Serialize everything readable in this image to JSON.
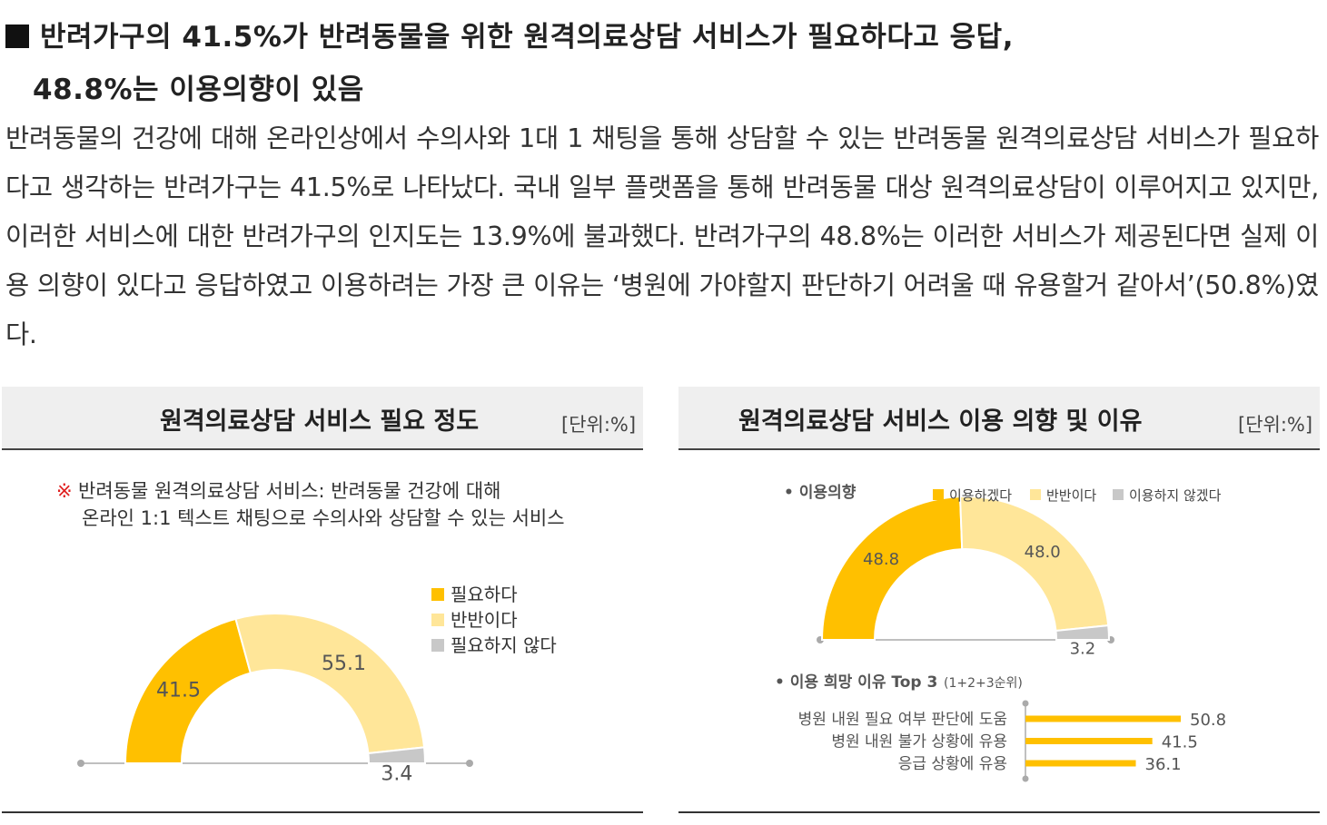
{
  "heading": {
    "line1": "반려가구의 41.5%가 반려동물을 위한 원격의료상담 서비스가 필요하다고 응답,",
    "line2": "48.8%는 이용의향이 있음"
  },
  "body_text": "반려동물의 건강에 대해 온라인상에서 수의사와 1대 1 채팅을 통해 상담할 수 있는 반려동물 원격의료상담 서비스가 필요하다고 생각하는 반려가구는 41.5%로 나타났다. 국내 일부 플랫폼을 통해 반려동물 대상 원격의료상담이 이루어지고 있지만, 이러한 서비스에 대한 반려가구의 인지도는 13.9%에 불과했다. 반려가구의 48.8%는 이러한 서비스가 제공된다면 실제 이용 의향이 있다고 응답하였고 이용하려는 가장 큰 이유는 ‘병원에 가야할지 판단하기 어려울 때 유용할거 같아서’(50.8%)였다.",
  "colors": {
    "dark": "#ffc000",
    "light": "#ffe699",
    "gray": "#c8c8c8",
    "axis": "#aaaaaa",
    "note_mark": "#e02020"
  },
  "left_panel": {
    "title": "원격의료상담 서비스 필요 정도",
    "unit": "[단위:%]",
    "note_mark": "※",
    "note_line1": "반려동물 원격의료상담 서비스: 반려동물 건강에 대해",
    "note_line2": "온라인 1:1 텍스트 채팅으로 수의사와 상담할 수 있는 서비스"
  },
  "right_panel": {
    "title": "원격의료상담 서비스 이용 의향 및 이유",
    "unit": "[단위:%]",
    "intent_label": "• 이용의향",
    "reasons_label": "• 이용 희망 이유 Top 3",
    "reasons_sub": "(1+2+3순위)"
  },
  "chart_data": [
    {
      "type": "pie",
      "variant": "half-donut",
      "title": "원격의료상담 서비스 필요 정도",
      "unit": "[단위:%]",
      "labels": [
        "필요하다",
        "반반이다",
        "필요하지 않다"
      ],
      "values": [
        41.5,
        55.1,
        3.4
      ],
      "value_labels": [
        "41.5",
        "55.1",
        "3.4"
      ],
      "colors": [
        "#ffc000",
        "#ffe699",
        "#c8c8c8"
      ],
      "legend_position": "right"
    },
    {
      "type": "pie",
      "variant": "half-donut",
      "title": "이용의향",
      "labels": [
        "이용하겠다",
        "반반이다",
        "이용하지 않겠다"
      ],
      "values": [
        48.8,
        48.0,
        3.2
      ],
      "value_labels": [
        "48.8",
        "48.0",
        "3.2"
      ],
      "colors": [
        "#ffc000",
        "#ffe699",
        "#c8c8c8"
      ],
      "legend_position": "top"
    },
    {
      "type": "bar",
      "orientation": "horizontal",
      "title": "이용 희망 이유 Top 3",
      "categories": [
        "병원 내원 필요 여부 판단에 도움",
        "병원 내원 불가 상황에 유용",
        "응급 상황에 유용"
      ],
      "values": [
        50.8,
        41.5,
        36.1
      ],
      "value_labels": [
        "50.8",
        "41.5",
        "36.1"
      ],
      "color": "#ffc000",
      "xlim": [
        0,
        60
      ]
    }
  ]
}
